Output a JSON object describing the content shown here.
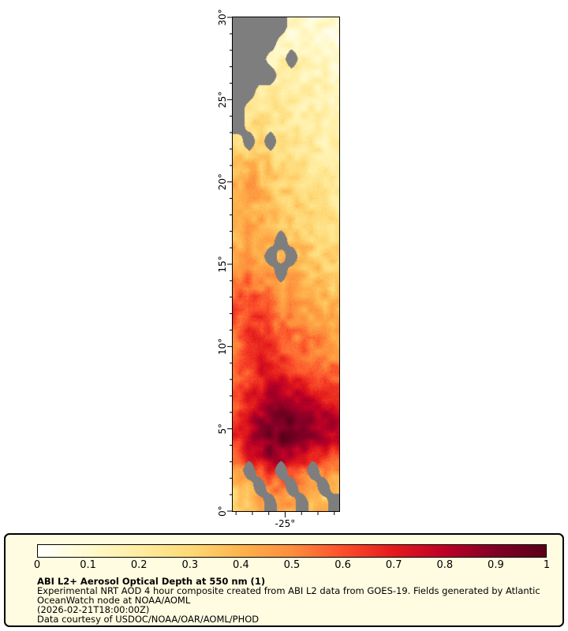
{
  "window": {
    "background": "#ffffff"
  },
  "map": {
    "no_data_color": "#7e7e7e",
    "frame_color": "#000000"
  },
  "legend": {
    "background": "#fffce1",
    "border_color": "#000000",
    "title": "ABI L2+ Aerosol Optical Depth at 550 nm (1)",
    "description_lines": [
      "Experimental NRT AOD 4 hour composite created from ABI L2 data from GOES-19. Fields generated by Atlantic",
      "OceanWatch node at NOAA/AOML",
      "(2026-02-21T18:00:00Z)",
      "Data courtesy of USDOC/NOAA/OAR/AOML/PHOD"
    ]
  },
  "chart_data": {
    "type": "heatmap",
    "title": "ABI L2+ Aerosol Optical Depth at 550 nm (1)",
    "variable": "Aerosol Optical Depth (AOD) at 550 nm",
    "source_text": "ABI L2 data from GOES-19",
    "legend_position": "bottom",
    "y_axis": {
      "tick_labels": [
        "0°",
        "5°",
        "10°",
        "15°",
        "20°",
        "25°",
        "30°"
      ],
      "range": [
        0,
        30
      ],
      "major_step": 5,
      "minor_step": 1
    },
    "x_axis": {
      "tick_labels": [
        "-25°"
      ],
      "major_values": [
        -25
      ],
      "range": [
        -28.2,
        -21.7
      ],
      "minor_step": 1
    },
    "colorbar": {
      "min": 0,
      "max": 1,
      "tick_labels": [
        "0",
        "0.1",
        "0.2",
        "0.3",
        "0.4",
        "0.5",
        "0.6",
        "0.7",
        "0.8",
        "0.9",
        "1"
      ],
      "stops": [
        {
          "pos": 0.0,
          "color": "#ffffff"
        },
        {
          "pos": 0.1,
          "color": "#fffacd"
        },
        {
          "pos": 0.2,
          "color": "#ffeda0"
        },
        {
          "pos": 0.3,
          "color": "#fed976"
        },
        {
          "pos": 0.4,
          "color": "#feb24c"
        },
        {
          "pos": 0.5,
          "color": "#fd8d3c"
        },
        {
          "pos": 0.6,
          "color": "#fc4e2a"
        },
        {
          "pos": 0.7,
          "color": "#e31a1c"
        },
        {
          "pos": 0.8,
          "color": "#bd0026"
        },
        {
          "pos": 0.9,
          "color": "#800026"
        },
        {
          "pos": 1.0,
          "color": "#5a0019"
        }
      ]
    },
    "grid": {
      "rows": 30,
      "cols": 10,
      "lat_range": [
        0,
        30
      ],
      "lon_range": [
        -28.2,
        -21.7
      ],
      "no_data_value": -1,
      "values": [
        [
          -1,
          -1,
          -1,
          -1,
          -1,
          0.1,
          0.12,
          0.12,
          0.1,
          0.08
        ],
        [
          -1,
          -1,
          -1,
          -1,
          0.14,
          0.14,
          0.14,
          0.12,
          0.1,
          0.08
        ],
        [
          -1,
          -1,
          -1,
          0.16,
          0.16,
          -1,
          0.16,
          0.14,
          0.12,
          0.1
        ],
        [
          -1,
          -1,
          -1,
          -1,
          0.18,
          0.18,
          0.16,
          0.16,
          0.14,
          0.12
        ],
        [
          -1,
          -1,
          0.2,
          0.2,
          0.2,
          0.18,
          0.18,
          0.16,
          0.16,
          0.14
        ],
        [
          -1,
          0.22,
          0.24,
          0.22,
          0.22,
          0.2,
          0.18,
          0.18,
          0.16,
          0.16
        ],
        [
          -1,
          0.26,
          0.28,
          0.26,
          0.24,
          0.22,
          0.2,
          0.18,
          0.18,
          0.16
        ],
        [
          0.28,
          -1,
          0.3,
          -1,
          0.26,
          0.24,
          0.22,
          0.2,
          0.18,
          0.18
        ],
        [
          0.32,
          0.36,
          0.34,
          0.3,
          0.28,
          0.26,
          0.24,
          0.22,
          0.2,
          0.18
        ],
        [
          0.38,
          0.44,
          0.4,
          0.34,
          0.3,
          0.28,
          0.26,
          0.24,
          0.22,
          0.2
        ],
        [
          0.42,
          0.46,
          0.42,
          0.36,
          0.32,
          0.3,
          0.28,
          0.26,
          0.24,
          0.22
        ],
        [
          0.4,
          0.42,
          0.4,
          0.38,
          0.34,
          0.32,
          0.3,
          0.28,
          0.26,
          0.24
        ],
        [
          0.38,
          0.42,
          0.42,
          0.4,
          0.36,
          0.34,
          0.32,
          0.3,
          0.28,
          0.26
        ],
        [
          0.4,
          0.44,
          0.42,
          0.4,
          -1,
          0.36,
          0.34,
          0.32,
          0.3,
          0.28
        ],
        [
          0.44,
          0.48,
          0.44,
          -1,
          0.4,
          -1,
          0.36,
          0.34,
          0.32,
          0.3
        ],
        [
          0.48,
          0.52,
          0.48,
          0.44,
          -1,
          0.42,
          0.4,
          0.36,
          0.34,
          0.32
        ],
        [
          0.54,
          0.58,
          0.54,
          0.5,
          0.46,
          0.44,
          0.42,
          0.4,
          0.38,
          0.34
        ],
        [
          0.6,
          0.64,
          0.6,
          0.54,
          0.5,
          0.46,
          0.44,
          0.42,
          0.4,
          0.38
        ],
        [
          0.58,
          0.66,
          0.64,
          0.58,
          0.54,
          0.5,
          0.48,
          0.46,
          0.44,
          0.4
        ],
        [
          0.56,
          0.64,
          0.68,
          0.64,
          0.58,
          0.54,
          0.52,
          0.5,
          0.48,
          0.44
        ],
        [
          0.55,
          0.62,
          0.68,
          0.68,
          0.62,
          0.58,
          0.56,
          0.54,
          0.52,
          0.48
        ],
        [
          0.56,
          0.62,
          0.7,
          0.72,
          0.7,
          0.66,
          0.62,
          0.6,
          0.58,
          0.54
        ],
        [
          0.58,
          0.66,
          0.72,
          0.78,
          0.78,
          0.75,
          0.72,
          0.7,
          0.66,
          0.62
        ],
        [
          0.6,
          0.7,
          0.78,
          0.84,
          0.88,
          0.86,
          0.84,
          0.8,
          0.76,
          0.7
        ],
        [
          0.66,
          0.76,
          0.84,
          0.9,
          0.94,
          0.95,
          0.92,
          0.88,
          0.84,
          0.78
        ],
        [
          0.7,
          0.8,
          0.88,
          0.93,
          0.95,
          0.94,
          0.9,
          0.87,
          0.83,
          0.8
        ],
        [
          0.6,
          0.72,
          0.82,
          0.86,
          0.85,
          0.8,
          0.76,
          0.72,
          0.68,
          0.64
        ],
        [
          0.45,
          -1,
          0.6,
          0.68,
          -1,
          0.62,
          0.58,
          -1,
          0.5,
          0.48
        ],
        [
          0.35,
          0.42,
          -1,
          0.5,
          0.55,
          -1,
          0.48,
          0.44,
          -1,
          0.4
        ],
        [
          0.32,
          0.38,
          0.42,
          -1,
          0.46,
          0.44,
          -1,
          0.4,
          0.36,
          -1
        ]
      ]
    }
  }
}
